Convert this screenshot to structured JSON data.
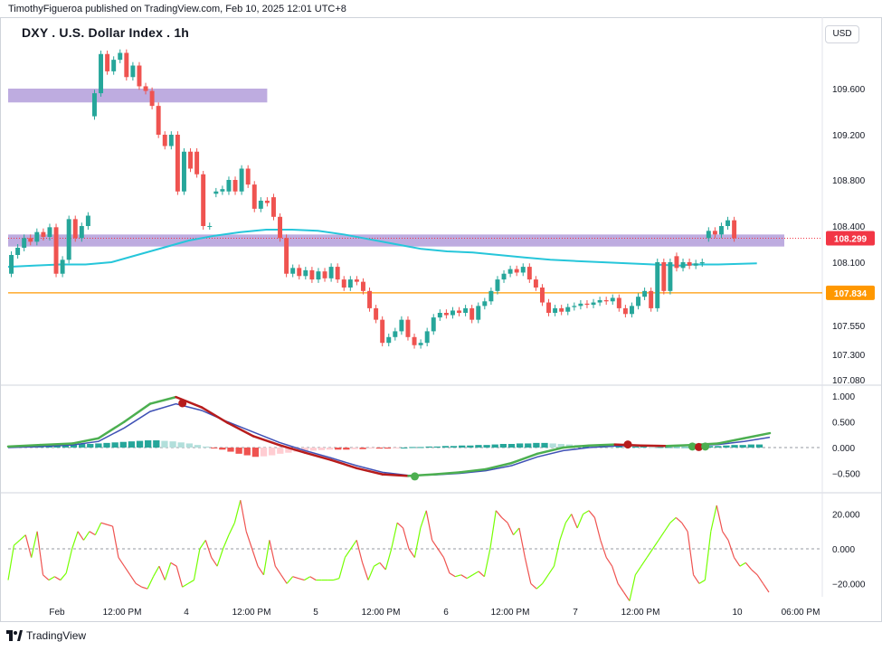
{
  "header": {
    "attribution": "TimothyFigueroa published on TradingView.com, Feb 10, 2025 12:01 UTC+8",
    "title": "DXY . U.S. Dollar Index . 1h",
    "currency": "USD"
  },
  "footer": {
    "brand": "TradingView"
  },
  "colors": {
    "up": "#26a69a",
    "down": "#ef5350",
    "zone": "#b39ddb",
    "support_line": "#ff9800",
    "ma": "#26c6da",
    "price_tag": "#f23645",
    "level_tag": "#ff9800",
    "macd_fast": "#4caf50",
    "macd_slow": "#3f51b5",
    "macd_fast_down": "#b71c1c",
    "hist_up_strong": "#26a69a",
    "hist_up_weak": "#b2dfdb",
    "hist_down_strong": "#ef5350",
    "hist_down_weak": "#ffcdd2",
    "osc_up": "#76ff03",
    "osc_down": "#ef5350"
  },
  "chart_data": [
    {
      "type": "candlestick",
      "name": "price",
      "x_labels": [
        "Feb",
        "12:00 PM",
        "4",
        "12:00 PM",
        "5",
        "12:00 PM",
        "6",
        "12:00 PM",
        "7",
        "12:00 PM",
        "10",
        "06:00 PM"
      ],
      "y_ticks": [
        109.6,
        109.2,
        108.8,
        108.4,
        108.1,
        107.55,
        107.3,
        107.08
      ],
      "y_tick_labels": [
        "109.600",
        "109.200",
        "108.800",
        "108.400",
        "108.100",
        "107.550",
        "107.300",
        "107.080"
      ],
      "price_tag": {
        "value": 108.299,
        "label": "108.299"
      },
      "level_tag": {
        "value": 107.834,
        "label": "107.834"
      },
      "zones": [
        {
          "from_x": 0,
          "to_x": 40,
          "low": 109.48,
          "high": 109.6
        },
        {
          "from_x": 0,
          "to_x": 118,
          "low": 108.23,
          "high": 108.33
        }
      ],
      "support_level": 107.834,
      "current_price_line": 108.299,
      "ma": [
        [
          0,
          108.06
        ],
        [
          4,
          108.07
        ],
        [
          8,
          108.08
        ],
        [
          12,
          108.08
        ],
        [
          16,
          108.1
        ],
        [
          20,
          108.16
        ],
        [
          24,
          108.22
        ],
        [
          28,
          108.28
        ],
        [
          32,
          108.32
        ],
        [
          36,
          108.35
        ],
        [
          40,
          108.37
        ],
        [
          44,
          108.37
        ],
        [
          48,
          108.36
        ],
        [
          52,
          108.33
        ],
        [
          56,
          108.29
        ],
        [
          60,
          108.25
        ],
        [
          64,
          108.21
        ],
        [
          68,
          108.19
        ],
        [
          72,
          108.18
        ],
        [
          76,
          108.16
        ],
        [
          80,
          108.14
        ],
        [
          84,
          108.12
        ],
        [
          88,
          108.11
        ],
        [
          92,
          108.1
        ],
        [
          96,
          108.09
        ],
        [
          100,
          108.08
        ],
        [
          104,
          108.07
        ],
        [
          106,
          108.08
        ],
        [
          110,
          108.08
        ],
        [
          116,
          108.09
        ]
      ],
      "candles": [
        [
          108.0,
          108.16
        ],
        [
          108.16,
          108.22
        ],
        [
          108.22,
          108.3
        ],
        [
          108.3,
          108.27
        ],
        [
          108.27,
          108.35
        ],
        [
          108.35,
          108.31
        ],
        [
          108.31,
          108.39
        ],
        [
          108.39,
          108.0
        ],
        [
          108.0,
          108.12
        ],
        [
          108.12,
          108.46
        ],
        [
          108.46,
          108.3
        ],
        [
          108.3,
          108.4
        ],
        [
          108.4,
          108.49
        ],
        [
          109.36,
          109.56
        ],
        [
          109.56,
          109.9
        ],
        [
          109.9,
          109.75
        ],
        [
          109.75,
          109.85
        ],
        [
          109.85,
          109.91
        ],
        [
          109.91,
          109.7
        ],
        [
          109.7,
          109.8
        ],
        [
          109.8,
          109.62
        ],
        [
          109.62,
          109.58
        ],
        [
          109.58,
          109.45
        ],
        [
          109.45,
          109.2
        ],
        [
          109.2,
          109.1
        ],
        [
          109.1,
          109.2
        ],
        [
          109.2,
          108.7
        ],
        [
          108.7,
          109.05
        ],
        [
          109.05,
          108.9
        ],
        [
          109.05,
          108.85
        ],
        [
          108.85,
          108.4
        ],
        [
          108.4,
          108.4
        ],
        [
          108.68,
          108.7
        ],
        [
          108.7,
          108.72
        ],
        [
          108.7,
          108.8
        ],
        [
          108.8,
          108.7
        ],
        [
          108.7,
          108.9
        ],
        [
          108.9,
          108.76
        ],
        [
          108.76,
          108.55
        ],
        [
          108.55,
          108.62
        ],
        [
          108.62,
          108.6
        ],
        [
          108.65,
          108.48
        ],
        [
          108.48,
          108.3
        ],
        [
          108.3,
          108.0
        ],
        [
          108.0,
          108.05
        ],
        [
          108.05,
          107.98
        ],
        [
          107.98,
          108.03
        ],
        [
          108.03,
          107.95
        ],
        [
          107.95,
          108.02
        ],
        [
          108.02,
          107.96
        ],
        [
          107.96,
          108.06
        ],
        [
          108.06,
          107.95
        ],
        [
          107.95,
          107.88
        ],
        [
          107.88,
          107.95
        ],
        [
          107.95,
          107.93
        ],
        [
          107.93,
          107.85
        ],
        [
          107.85,
          107.7
        ],
        [
          107.7,
          107.6
        ],
        [
          107.6,
          107.4
        ],
        [
          107.4,
          107.45
        ],
        [
          107.45,
          107.5
        ],
        [
          107.5,
          107.6
        ],
        [
          107.6,
          107.45
        ],
        [
          107.45,
          107.38
        ],
        [
          107.38,
          107.4
        ],
        [
          107.4,
          107.5
        ],
        [
          107.5,
          107.62
        ],
        [
          107.62,
          107.66
        ],
        [
          107.66,
          107.64
        ],
        [
          107.64,
          107.68
        ],
        [
          107.68,
          107.66
        ],
        [
          107.66,
          107.7
        ],
        [
          107.7,
          107.6
        ],
        [
          107.6,
          107.72
        ],
        [
          107.72,
          107.76
        ],
        [
          107.76,
          107.85
        ],
        [
          107.85,
          107.95
        ],
        [
          107.95,
          108.0
        ],
        [
          108.0,
          108.04
        ],
        [
          108.04,
          108.01
        ],
        [
          108.01,
          108.06
        ],
        [
          108.06,
          107.95
        ],
        [
          107.95,
          107.88
        ],
        [
          107.88,
          107.75
        ],
        [
          107.75,
          107.66
        ],
        [
          107.66,
          107.7
        ],
        [
          107.7,
          107.67
        ],
        [
          107.67,
          107.71
        ],
        [
          107.71,
          107.72
        ],
        [
          107.72,
          107.74
        ],
        [
          107.74,
          107.73
        ],
        [
          107.73,
          107.75
        ],
        [
          107.75,
          107.77
        ],
        [
          107.77,
          107.76
        ],
        [
          107.76,
          107.79
        ],
        [
          107.79,
          107.7
        ],
        [
          107.7,
          107.65
        ],
        [
          107.65,
          107.72
        ],
        [
          107.72,
          107.8
        ],
        [
          107.8,
          107.85
        ],
        [
          107.85,
          107.7
        ],
        [
          107.7,
          108.1
        ],
        [
          108.1,
          107.85
        ],
        [
          107.85,
          108.1
        ],
        [
          108.15,
          108.05
        ],
        [
          108.05,
          108.1
        ],
        [
          108.1,
          108.07
        ],
        [
          108.07,
          108.09
        ],
        [
          108.09,
          108.1
        ],
        [
          108.3,
          108.36
        ],
        [
          108.36,
          108.33
        ],
        [
          108.33,
          108.4
        ],
        [
          108.4,
          108.45
        ],
        [
          108.45,
          108.3
        ]
      ]
    },
    {
      "type": "line",
      "name": "macd",
      "y_ticks": [
        1.0,
        0.5,
        0.0,
        -0.5
      ],
      "y_tick_labels": [
        "1.000",
        "0.500",
        "0.000",
        "−0.500"
      ],
      "fast": [
        [
          0,
          0.02
        ],
        [
          5,
          0.05
        ],
        [
          10,
          0.08
        ],
        [
          14,
          0.18
        ],
        [
          18,
          0.5
        ],
        [
          22,
          0.85
        ],
        [
          26,
          0.98
        ],
        [
          30,
          0.78
        ],
        [
          34,
          0.48
        ],
        [
          38,
          0.22
        ],
        [
          42,
          0.05
        ],
        [
          46,
          -0.1
        ],
        [
          50,
          -0.24
        ],
        [
          54,
          -0.4
        ],
        [
          58,
          -0.52
        ],
        [
          62,
          -0.55
        ],
        [
          66,
          -0.52
        ],
        [
          70,
          -0.48
        ],
        [
          74,
          -0.42
        ],
        [
          78,
          -0.3
        ],
        [
          82,
          -0.12
        ],
        [
          86,
          0.0
        ],
        [
          90,
          0.04
        ],
        [
          94,
          0.06
        ],
        [
          98,
          0.04
        ],
        [
          102,
          0.03
        ],
        [
          106,
          0.05
        ],
        [
          110,
          0.08
        ],
        [
          114,
          0.18
        ],
        [
          118,
          0.28
        ]
      ],
      "slow": [
        [
          0,
          0.0
        ],
        [
          5,
          0.02
        ],
        [
          10,
          0.05
        ],
        [
          14,
          0.12
        ],
        [
          18,
          0.38
        ],
        [
          22,
          0.7
        ],
        [
          26,
          0.85
        ],
        [
          30,
          0.72
        ],
        [
          34,
          0.5
        ],
        [
          38,
          0.3
        ],
        [
          42,
          0.1
        ],
        [
          46,
          -0.06
        ],
        [
          50,
          -0.2
        ],
        [
          54,
          -0.35
        ],
        [
          58,
          -0.48
        ],
        [
          62,
          -0.54
        ],
        [
          66,
          -0.53
        ],
        [
          70,
          -0.5
        ],
        [
          74,
          -0.45
        ],
        [
          78,
          -0.35
        ],
        [
          82,
          -0.18
        ],
        [
          86,
          -0.06
        ],
        [
          90,
          0.0
        ],
        [
          94,
          0.03
        ],
        [
          98,
          0.04
        ],
        [
          102,
          0.03
        ],
        [
          106,
          0.04
        ],
        [
          110,
          0.06
        ],
        [
          114,
          0.12
        ],
        [
          118,
          0.2
        ]
      ],
      "signal_dots": [
        {
          "x": 27,
          "y": 0.86,
          "dir": "down"
        },
        {
          "x": 63,
          "y": -0.56,
          "dir": "up"
        },
        {
          "x": 96,
          "y": 0.06,
          "dir": "down"
        },
        {
          "x": 106,
          "y": 0.02,
          "dir": "up"
        },
        {
          "x": 107,
          "y": 0.01,
          "dir": "down"
        },
        {
          "x": 108,
          "y": 0.02,
          "dir": "up"
        }
      ],
      "histogram": [
        0.02,
        0.03,
        0.03,
        0.04,
        0.05,
        0.05,
        0.06,
        0.06,
        0.07,
        0.07,
        0.08,
        0.09,
        0.1,
        0.11,
        0.12,
        0.13,
        0.14,
        0.14,
        0.13,
        0.12,
        0.1,
        0.08,
        0.05,
        0.02,
        -0.01,
        -0.04,
        -0.08,
        -0.12,
        -0.15,
        -0.18,
        -0.17,
        -0.15,
        -0.12,
        -0.1,
        -0.08,
        -0.07,
        -0.06,
        -0.05,
        -0.04,
        -0.04,
        -0.04,
        -0.03,
        -0.03,
        -0.02,
        -0.02,
        -0.02,
        -0.01,
        0.0,
        0.01,
        0.01,
        0.02,
        0.02,
        0.03,
        0.03,
        0.04,
        0.04,
        0.05,
        0.05,
        0.06,
        0.07,
        0.07,
        0.08,
        0.08,
        0.09,
        0.09,
        0.08,
        0.07,
        0.06,
        0.05,
        0.05,
        0.04,
        0.04,
        0.03,
        0.03,
        0.02,
        0.02,
        0.02,
        0.01,
        0.01,
        0.01,
        0.01,
        0.01,
        0.02,
        0.02,
        0.03,
        0.03,
        0.04,
        0.05,
        0.05,
        0.06,
        0.06
      ]
    },
    {
      "type": "line",
      "name": "oscillator",
      "y_ticks": [
        20.0,
        0.0,
        -20.0
      ],
      "y_tick_labels": [
        "20.000",
        "0.000",
        "−20.000"
      ],
      "values": [
        -18,
        2,
        5,
        8,
        -5,
        10,
        -15,
        -18,
        -16,
        -18,
        -14,
        0,
        10,
        5,
        10,
        8,
        15,
        14,
        13,
        -5,
        -10,
        -15,
        -20,
        -22,
        -23,
        -16,
        -10,
        -18,
        -8,
        -10,
        -22,
        -20,
        -18,
        0,
        5,
        -5,
        -10,
        0,
        8,
        15,
        28,
        10,
        0,
        -10,
        -15,
        5,
        -10,
        -15,
        -20,
        -16,
        -17,
        -18,
        -16,
        -18,
        -18,
        -18,
        -18,
        -17,
        -5,
        0,
        5,
        -8,
        -18,
        -10,
        -8,
        -12,
        0,
        15,
        12,
        0,
        -5,
        12,
        22,
        5,
        0,
        -5,
        -14,
        -16,
        -15,
        -17,
        -15,
        -13,
        -16,
        0,
        22,
        18,
        15,
        8,
        12,
        -5,
        -20,
        -23,
        -20,
        -15,
        -10,
        5,
        15,
        20,
        12,
        20,
        22,
        18,
        5,
        -5,
        -10,
        -20,
        -25,
        -30,
        -15,
        -10,
        -5,
        0,
        5,
        10,
        15,
        18,
        15,
        10,
        -15,
        -20,
        -18,
        10,
        25,
        10,
        5,
        -5,
        -10,
        -8,
        -12,
        -15,
        -20,
        -25
      ]
    }
  ]
}
